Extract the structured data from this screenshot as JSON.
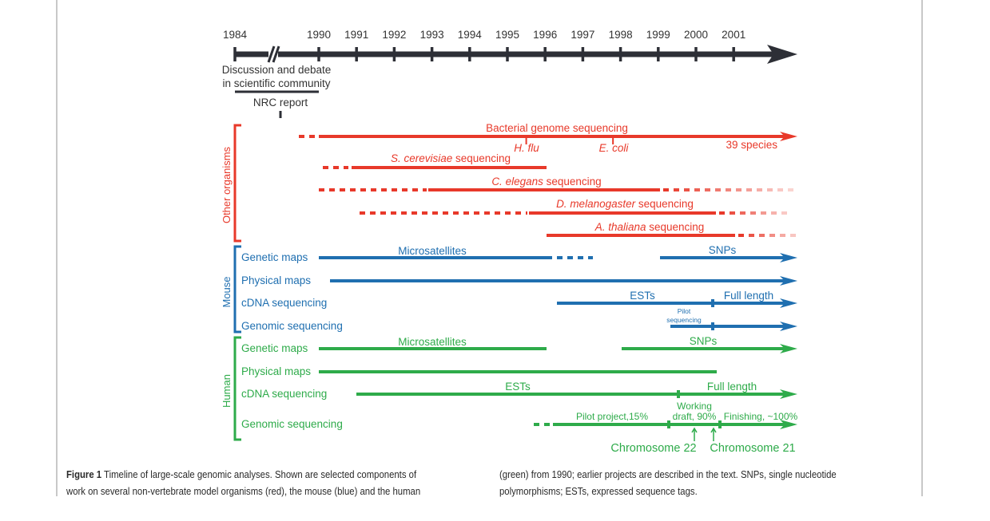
{
  "figure": {
    "axis": {
      "years": [
        "1984",
        "1990",
        "1991",
        "1992",
        "1993",
        "1994",
        "1995",
        "1996",
        "1997",
        "1998",
        "1999",
        "2000",
        "2001"
      ],
      "break_between": [
        "1984",
        "1990"
      ],
      "early_labels": {
        "discussion_line1": "Discussion and debate",
        "discussion_line2": "in scientific community",
        "nrc_report": "NRC report"
      }
    },
    "colors": {
      "axis": "#2d2f36",
      "other": "#e8392a",
      "mouse": "#1f6fb0",
      "human": "#2eab4a"
    },
    "groups": {
      "other": "Other organisms",
      "mouse": "Mouse",
      "human": "Human"
    },
    "other_organisms": {
      "bacterial": {
        "label": "Bacterial genome sequencing",
        "start": 1989.6,
        "solid_from": 1990,
        "end": 2001.6,
        "arrow": true,
        "markers": [
          {
            "label": "H. flu",
            "year": 1995.5
          },
          {
            "label": "E. coli",
            "year": 1997.8
          }
        ],
        "end_note": "39 species"
      },
      "scer": {
        "label_italic": "S. cerevisiae",
        "label_rest": " sequencing",
        "dashed_from": 1990.1,
        "solid_from": 1990.9,
        "end": 1996
      },
      "celegans": {
        "label_italic": "C. elegans",
        "label_rest": " sequencing",
        "dashed_from": 1990,
        "solid_from": 1992.9,
        "solid_to": 1998.9,
        "fade_to": 2001.6
      },
      "dmel": {
        "label_italic": "D. melanogaster",
        "label_rest": " sequencing",
        "dashed_from": 1991.1,
        "solid_from": 1995.5,
        "solid_to": 2000.5,
        "fade_to": 2001.6
      },
      "athal": {
        "label_italic": "A. thaliana",
        "label_rest": " sequencing",
        "solid_from": 1996,
        "solid_to": 2001,
        "fade_to": 2001.6
      }
    },
    "mouse": {
      "rows": [
        {
          "label": "Genetic maps",
          "segments": [
            {
              "note": "Microsatellites",
              "from": 1990,
              "to": 1996,
              "dashed_to": 1997.2
            },
            {
              "note": "SNPs",
              "from": 1999,
              "to": 2001.6,
              "arrow": true
            }
          ]
        },
        {
          "label": "Physical maps",
          "segments": [
            {
              "from": 1990.3,
              "to": 2001.6,
              "arrow": true
            }
          ]
        },
        {
          "label": "cDNA sequencing",
          "segments": [
            {
              "note": "ESTs",
              "from": 1996.3,
              "to": 2001.6,
              "arrow": true,
              "tick": 2000.4
            }
          ],
          "right_note": "Full length"
        },
        {
          "label": "Genomic sequencing",
          "segments": [
            {
              "from": 1999.3,
              "to": 2001.6,
              "arrow": true,
              "tick": 2000.4
            }
          ],
          "pilot_line1": "Pilot",
          "pilot_line2": "sequencing"
        }
      ]
    },
    "human": {
      "rows": [
        {
          "label": "Genetic maps",
          "segments": [
            {
              "note": "Microsatellites",
              "from": 1990,
              "to": 1996
            },
            {
              "note": "SNPs",
              "from": 1998,
              "to": 2001.6,
              "arrow": true
            }
          ]
        },
        {
          "label": "Physical maps",
          "segments": [
            {
              "from": 1990,
              "to": 2000.5
            }
          ]
        },
        {
          "label": "cDNA sequencing",
          "segments": [
            {
              "note": "ESTs",
              "from": 1991,
              "to": 2001.6,
              "arrow": true,
              "tick": 1999.5
            }
          ],
          "right_note": "Full length"
        },
        {
          "label": "Genomic sequencing",
          "segments": [
            {
              "from": 1995.6,
              "to": 2001.6,
              "arrow": true,
              "ticks": [
                1999.3,
                2000.6
              ]
            }
          ],
          "pilot_note": "Pilot project,15%",
          "working_line1": "Working",
          "working_line2": "draft, 90%",
          "finishing_note": "Finishing, ~100%",
          "chr22": "Chromosome 22",
          "chr21": "Chromosome 21"
        }
      ]
    }
  },
  "caption": {
    "label": "Figure 1",
    "left_line1": " Timeline of large-scale genomic analyses. Shown are selected components of",
    "left_line2": "work on several non-vertebrate model organisms (red), the mouse (blue) and the human",
    "right_line1": "(green) from 1990; earlier projects are described in the text. SNPs, single nucleotide",
    "right_line2": "polymorphisms; ESTs, expressed sequence tags."
  }
}
